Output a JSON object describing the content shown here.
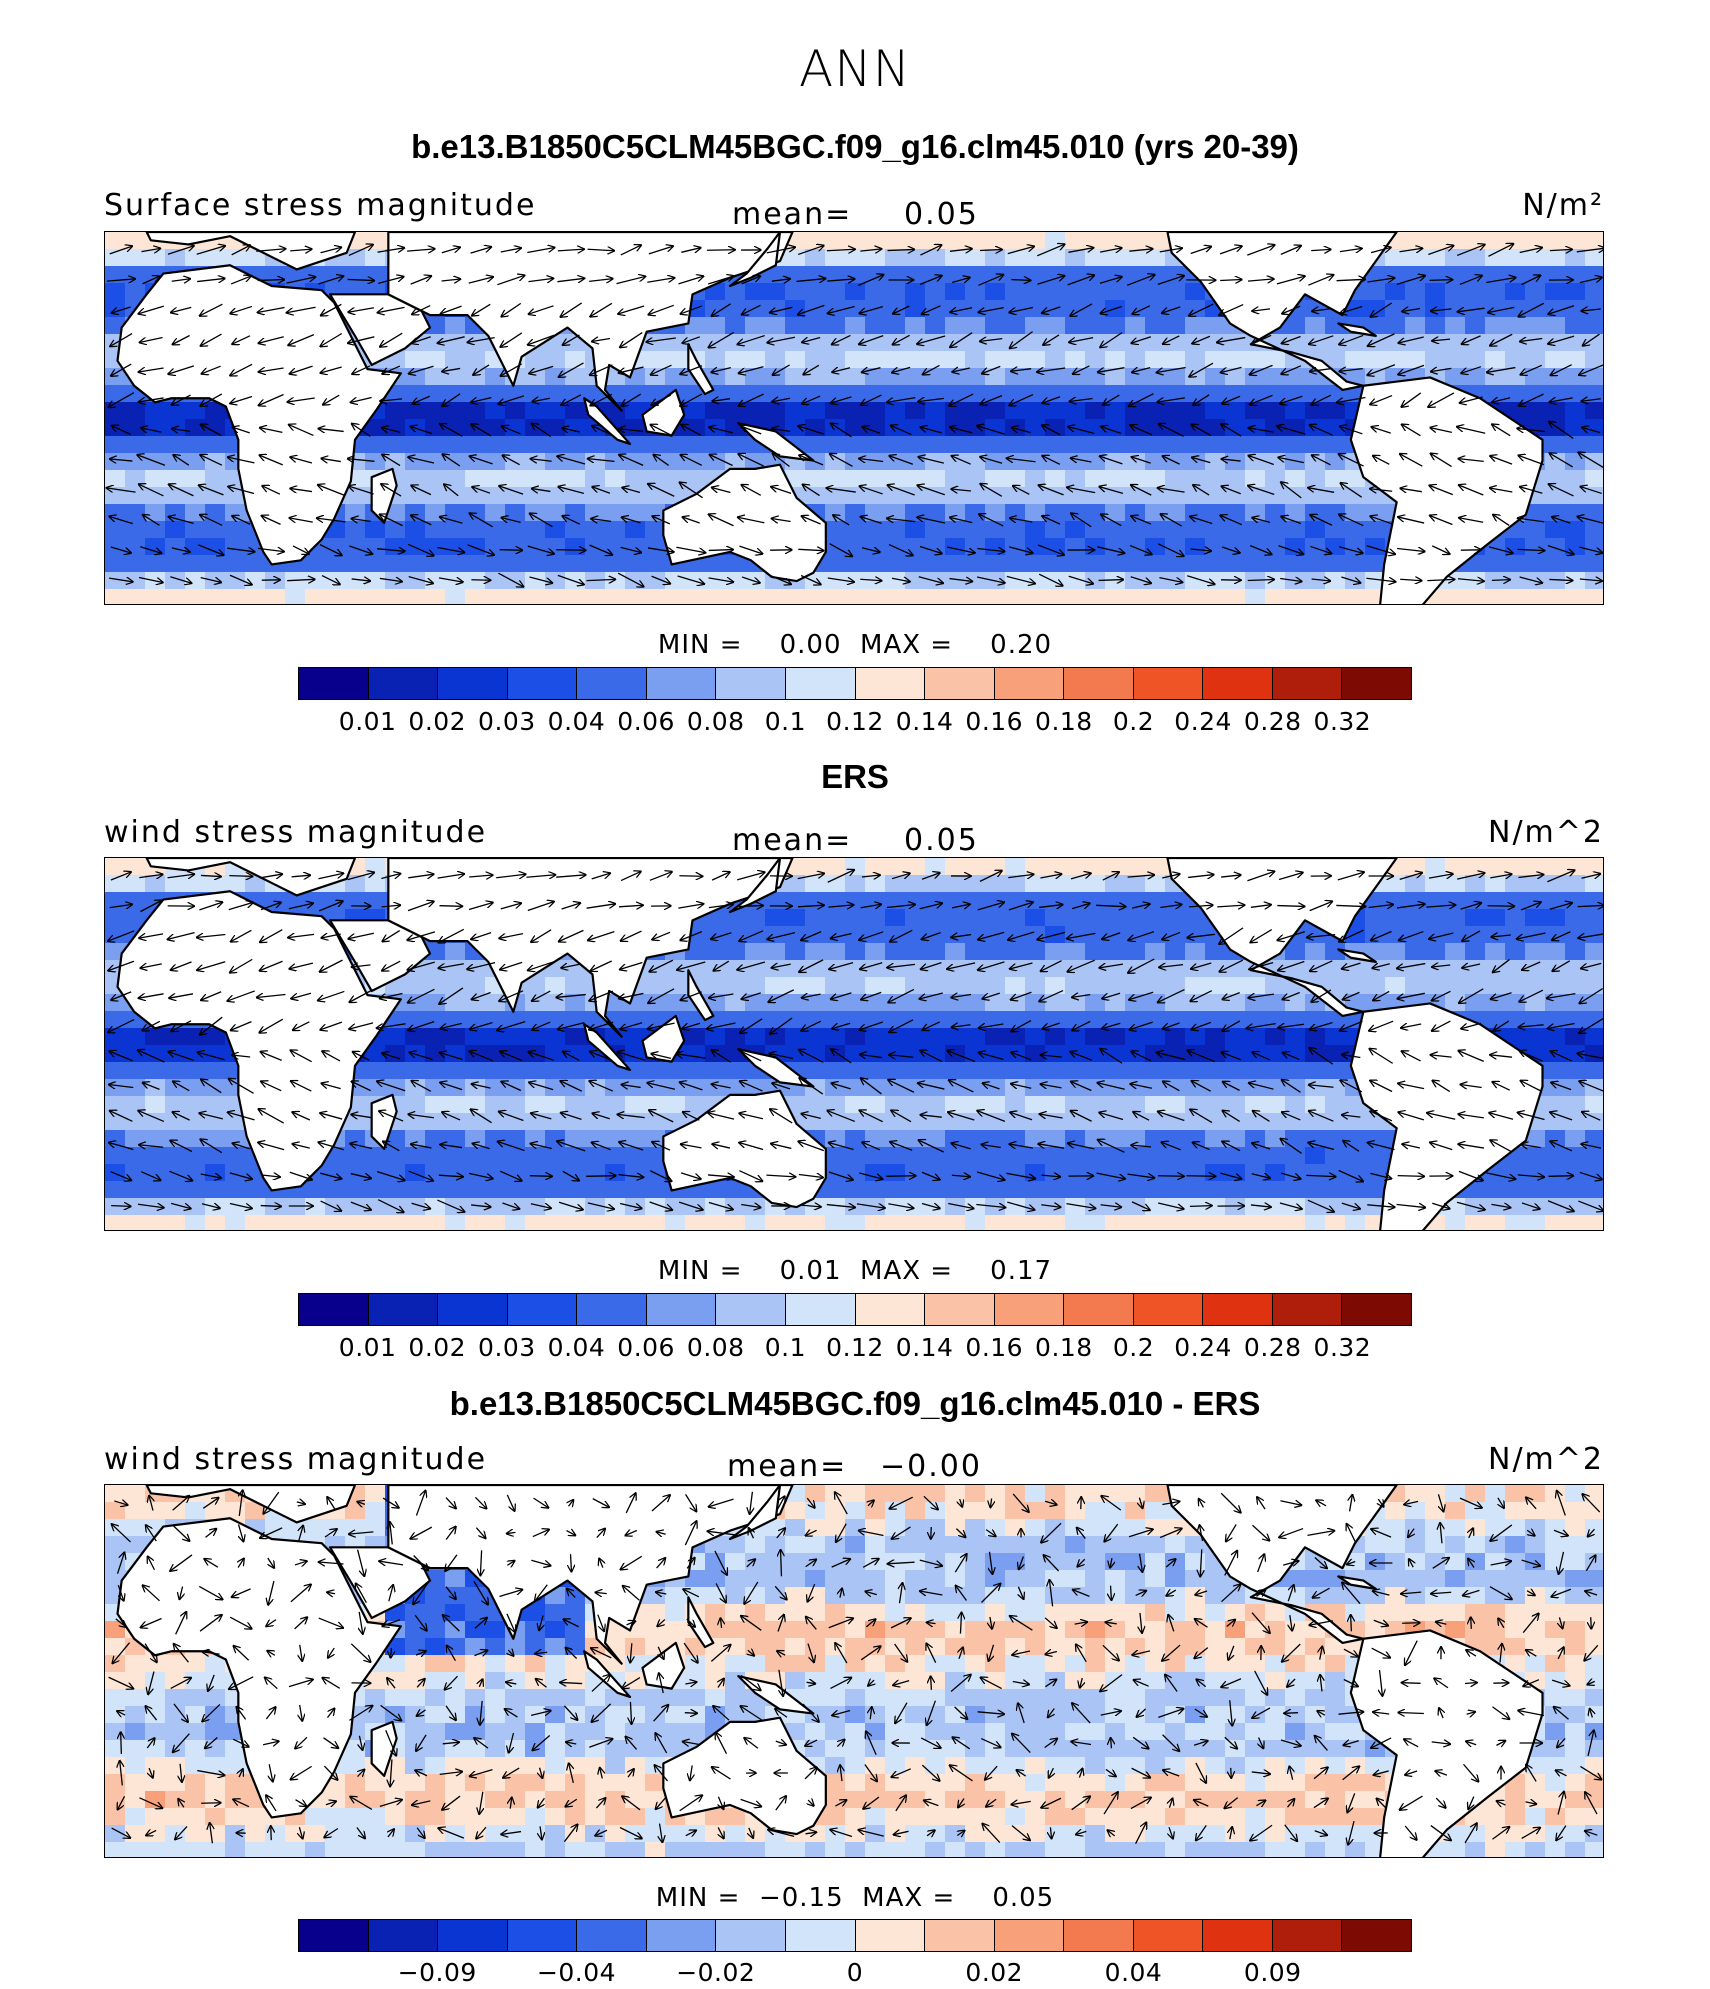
{
  "title": "ANN",
  "colors": {
    "palette_blue_red": [
      "#08008c",
      "#0a22b4",
      "#0b35d2",
      "#1c4fe6",
      "#3a6ae8",
      "#7a9ef0",
      "#aac4f6",
      "#d2e4fa",
      "#fde6d6",
      "#fac3a8",
      "#f8a07a",
      "#f37a4e",
      "#ee5426",
      "#de3210",
      "#ae1e0a",
      "#7e0a04"
    ],
    "land": "#ffffff",
    "coast": "#000000",
    "vector": "#000000"
  },
  "panels": [
    {
      "title": "b.e13.B1850C5CLM45BGC.f09_g16.clm45.010 (yrs 20-39)",
      "left_label": "Surface stress magnitude",
      "mean_label": "mean=",
      "mean_value": "0.05",
      "units": "N/m²",
      "min_label": "MIN =",
      "min_value": "0.00",
      "max_label": "MAX =",
      "max_value": "0.20",
      "colorbar_ticks": [
        "0.01",
        "0.02",
        "0.03",
        "0.04",
        "0.06",
        "0.08",
        "0.1",
        "0.12",
        "0.14",
        "0.16",
        "0.18",
        "0.2",
        "0.24",
        "0.28",
        "0.32"
      ],
      "field": "model"
    },
    {
      "title": "ERS",
      "left_label": "wind stress magnitude",
      "mean_label": "mean=",
      "mean_value": "0.05",
      "units": "N/m^2",
      "min_label": "MIN =",
      "min_value": "0.01",
      "max_label": "MAX =",
      "max_value": "0.17",
      "colorbar_ticks": [
        "0.01",
        "0.02",
        "0.03",
        "0.04",
        "0.06",
        "0.08",
        "0.1",
        "0.12",
        "0.14",
        "0.16",
        "0.18",
        "0.2",
        "0.24",
        "0.28",
        "0.32"
      ],
      "field": "obs"
    },
    {
      "title": "b.e13.B1850C5CLM45BGC.f09_g16.clm45.010 - ERS",
      "left_label": "wind stress magnitude",
      "mean_label": "mean=",
      "mean_value": "−0.00",
      "units": "N/m^2",
      "min_label": "MIN =",
      "min_value": "−0.15",
      "max_label": "MAX =",
      "max_value": "0.05",
      "colorbar_ticks": [
        "−0.09",
        "−0.04",
        "−0.02",
        "0",
        "0.02",
        "0.04",
        "0.09"
      ],
      "colorbar_tick_positions": [
        2,
        4,
        6,
        8,
        10,
        12,
        14
      ],
      "field": "diff"
    }
  ]
}
